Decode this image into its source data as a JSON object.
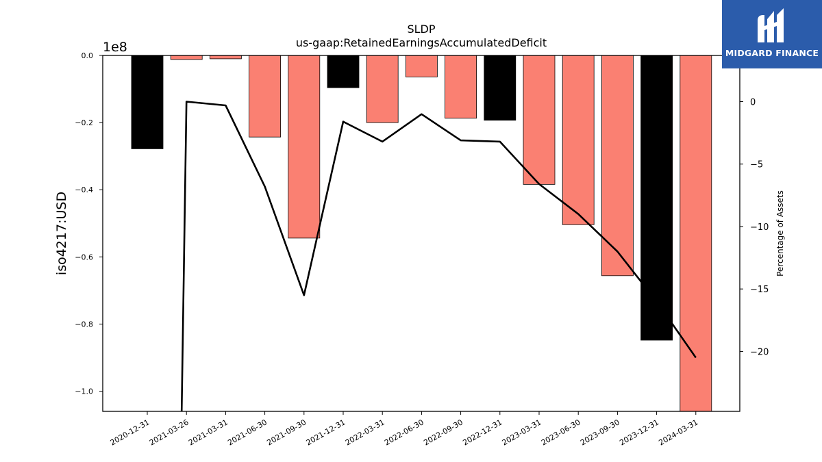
{
  "chart_data": {
    "type": "bar",
    "title": "SLDP",
    "subtitle": "us-gaap:RetainedEarningsAccumulatedDeficit",
    "ylabel": "iso4217:USD",
    "y2label": "Percentage of Assets",
    "y_scale_label": "1e8",
    "ylim": [
      -1.06,
      0
    ],
    "y_ticks": [
      0.0,
      -0.2,
      -0.4,
      -0.6,
      -0.8,
      -1.0
    ],
    "y_tick_labels": [
      "0.0",
      "−0.2",
      "−0.4",
      "−0.6",
      "−0.8",
      "−1.0"
    ],
    "y2lim": [
      -24.8,
      3.7
    ],
    "y2_ticks": [
      0,
      -5,
      -10,
      -15,
      -20
    ],
    "y2_tick_labels": [
      "0",
      "−5",
      "−10",
      "−15",
      "−20"
    ],
    "categories": [
      "2020-12-31",
      "2021-03-26",
      "2021-03-31",
      "2021-06-30",
      "2021-09-30",
      "2021-12-31",
      "2022-03-31",
      "2022-06-30",
      "2022-09-30",
      "2022-12-31",
      "2023-03-31",
      "2023-06-30",
      "2023-09-30",
      "2023-12-31",
      "2024-03-31"
    ],
    "series": [
      {
        "kind": "bar",
        "values": [
          -0.278,
          -0.012,
          -0.01,
          -0.243,
          -0.544,
          -0.096,
          -0.2,
          -0.064,
          -0.187,
          -0.193,
          -0.384,
          -0.504,
          -0.656,
          -0.848,
          -1.06
        ],
        "colors": [
          "#000000",
          "#fa8072",
          "#fa8072",
          "#fa8072",
          "#fa8072",
          "#000000",
          "#fa8072",
          "#fa8072",
          "#fa8072",
          "#000000",
          "#fa8072",
          "#fa8072",
          "#fa8072",
          "#000000",
          "#fa8072"
        ]
      },
      {
        "kind": "line",
        "axis": "right",
        "values": [
          null,
          0.0,
          -0.3,
          -6.8,
          -15.5,
          -1.6,
          -3.2,
          -1.0,
          -3.1,
          -3.2,
          -6.6,
          -9.0,
          -12.0,
          -16.0,
          -20.5
        ],
        "line_start_below": -24.8,
        "color": "#000000"
      }
    ],
    "grid": false
  },
  "brand": {
    "name": "MIDGARD FINANCE",
    "bg_color": "#2b5cab"
  }
}
